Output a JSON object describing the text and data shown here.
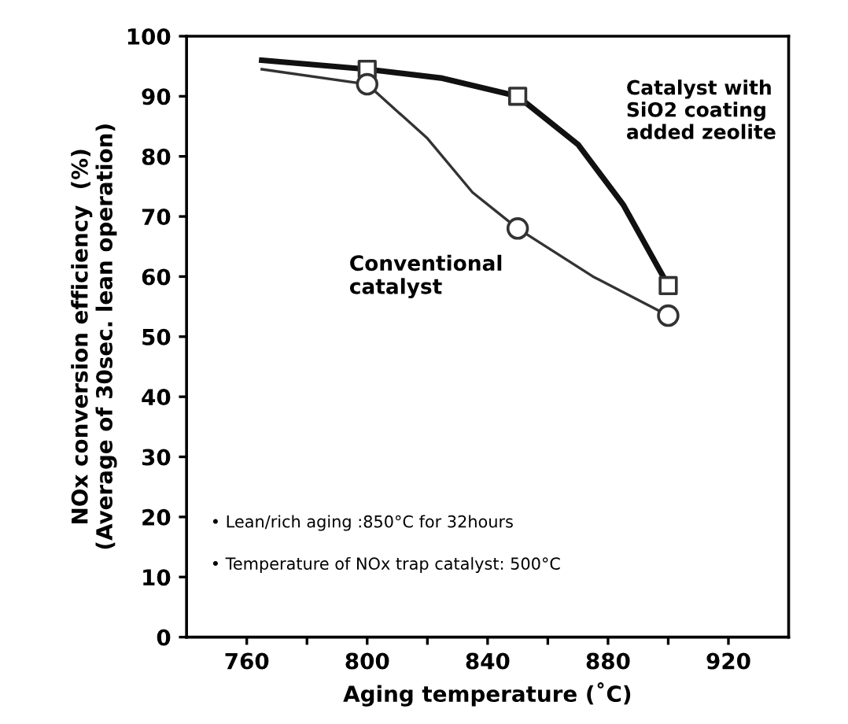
{
  "chart_data": {
    "type": "line",
    "xlabel": "Aging temperature (˚C)",
    "ylabel": "NOx conversion efficiency  (%)\n(Average of 30sec. lean operation)",
    "series": [
      {
        "color": "#111111",
        "x": [
          765,
          800,
          825,
          850,
          870,
          885,
          900
        ],
        "values": [
          96,
          94.5,
          93,
          90,
          82,
          72,
          58.5
        ]
      },
      {
        "color": "#333333",
        "x": [
          765,
          800,
          820,
          835,
          850,
          875,
          900
        ],
        "values": [
          94.5,
          92,
          83,
          74,
          68,
          60,
          53.5
        ]
      },
      {
        "type": "scatter",
        "marker": "square",
        "color": "#333333",
        "x": [
          800,
          850,
          900
        ],
        "values": [
          94.5,
          90,
          58.5
        ]
      },
      {
        "type": "scatter",
        "marker": "circle",
        "color": "#333333",
        "x": [
          800,
          850,
          900
        ],
        "values": [
          92,
          68,
          53.5
        ]
      }
    ],
    "annotations": [
      "Catalyst with\nSiO2 coating\nadded zeolite",
      "Conventional\ncatalyst",
      "• Lean/rich aging :850°C for 32hours",
      "• Temperature of NOx trap catalyst: 500°C"
    ],
    "xlim": [
      740,
      940
    ],
    "ylim": [
      0,
      100
    ],
    "xticks": [
      760,
      {
        "value": 780,
        "label": null
      },
      800,
      {
        "value": 820,
        "label": null
      },
      840,
      {
        "value": 860,
        "label": null
      },
      880,
      {
        "value": 900,
        "label": null
      },
      920
    ],
    "yticks": [
      0,
      10,
      20,
      30,
      40,
      50,
      60,
      70,
      80,
      90,
      100
    ]
  }
}
